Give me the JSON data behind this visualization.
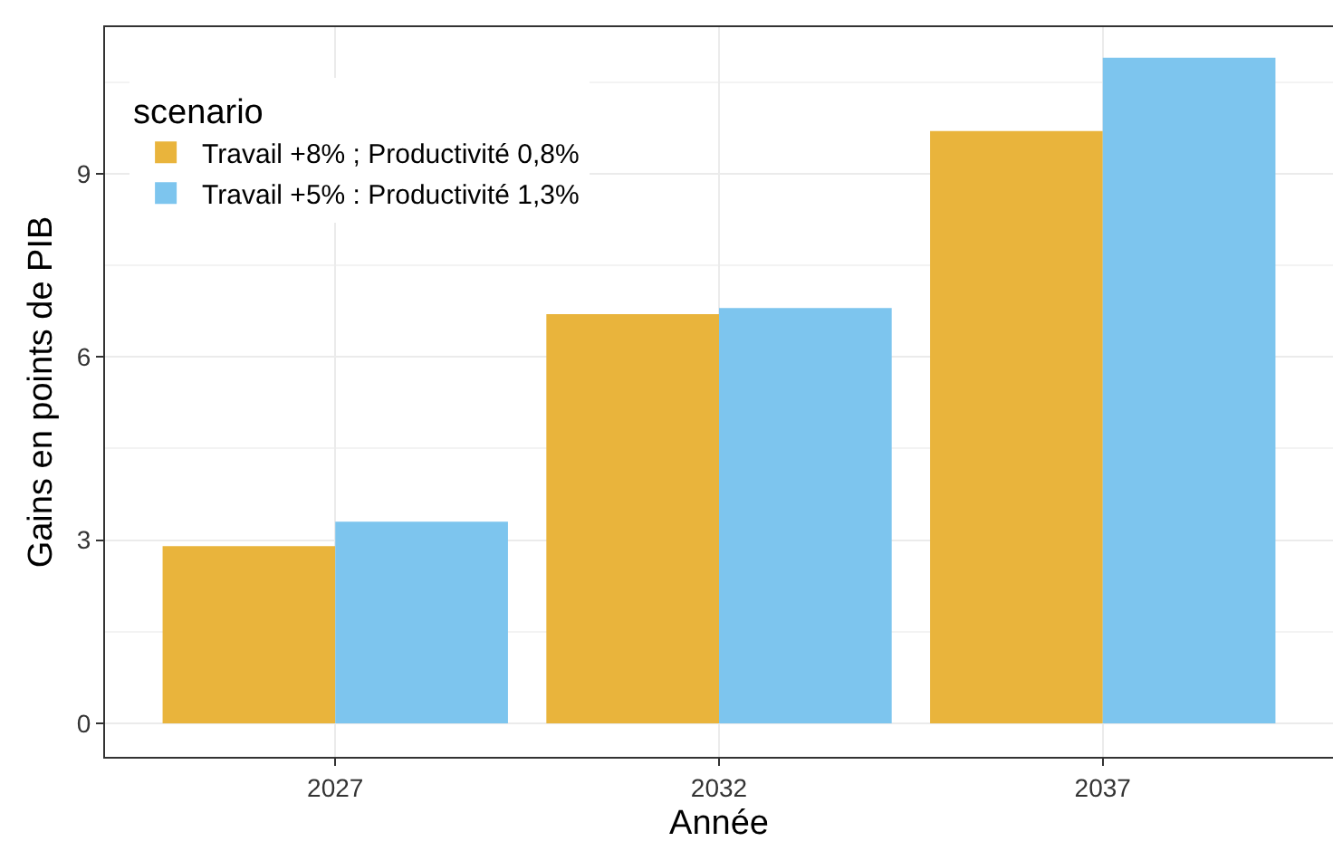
{
  "chart_data": {
    "type": "bar",
    "xlabel": "Année",
    "ylabel": "Gains en points de PIB",
    "legend_title": "scenario",
    "categories": [
      "2027",
      "2032",
      "2037"
    ],
    "series": [
      {
        "name": "Travail +8% ; Productivité 0,8%",
        "color": "#e9b43c",
        "values": [
          2.9,
          6.7,
          9.7
        ]
      },
      {
        "name": "Travail +5% : Productivité 1,3%",
        "color": "#7dc5ee",
        "values": [
          3.3,
          6.8,
          10.9
        ]
      }
    ],
    "ylim": [
      -0.55,
      11.4
    ],
    "yticks": [
      0,
      3,
      6,
      9
    ],
    "grid": true,
    "legend": "top left"
  }
}
